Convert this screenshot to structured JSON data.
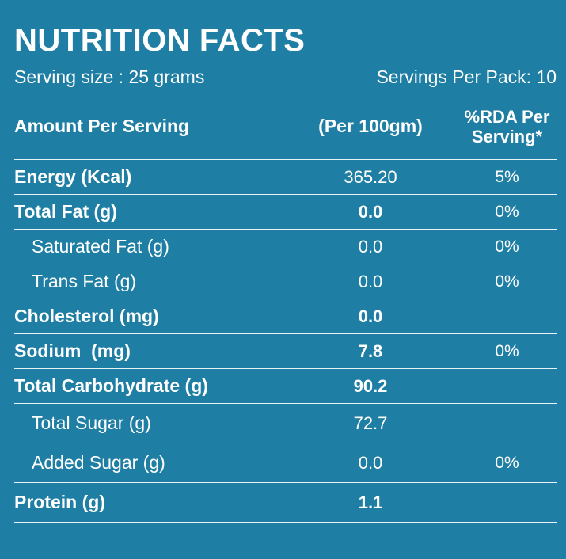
{
  "title": "NUTRITION FACTS",
  "serving_size": "Serving size : 25 grams",
  "servings_per_pack": "Servings Per Pack: 10",
  "headers": {
    "amount": "Amount Per Serving",
    "per100": "(Per 100gm)",
    "rda": "%RDA Per Serving*"
  },
  "rows": [
    {
      "label": "Energy (Kcal)",
      "per100": "365.20",
      "rda": "5%"
    },
    {
      "label": "Total Fat (g)",
      "per100": "0.0",
      "rda": "0%"
    },
    {
      "label": "Saturated Fat (g)",
      "per100": "0.0",
      "rda": "0%"
    },
    {
      "label": "Trans Fat (g)",
      "per100": "0.0",
      "rda": "0%"
    },
    {
      "label": "Cholesterol (mg)",
      "per100": "0.0",
      "rda": ""
    },
    {
      "label": "Sodium  (mg)",
      "per100": "7.8",
      "rda": "0%"
    },
    {
      "label": "Total Carbohydrate (g)",
      "per100": "90.2",
      "rda": ""
    },
    {
      "label": "Total Sugar (g)",
      "per100": "72.7",
      "rda": ""
    },
    {
      "label": "Added Sugar (g)",
      "per100": "0.0",
      "rda": "0%"
    },
    {
      "label": "Protein (g)",
      "per100": "1.1",
      "rda": ""
    }
  ],
  "colors": {
    "background": "#1f7ea3",
    "text": "#ffffff"
  }
}
